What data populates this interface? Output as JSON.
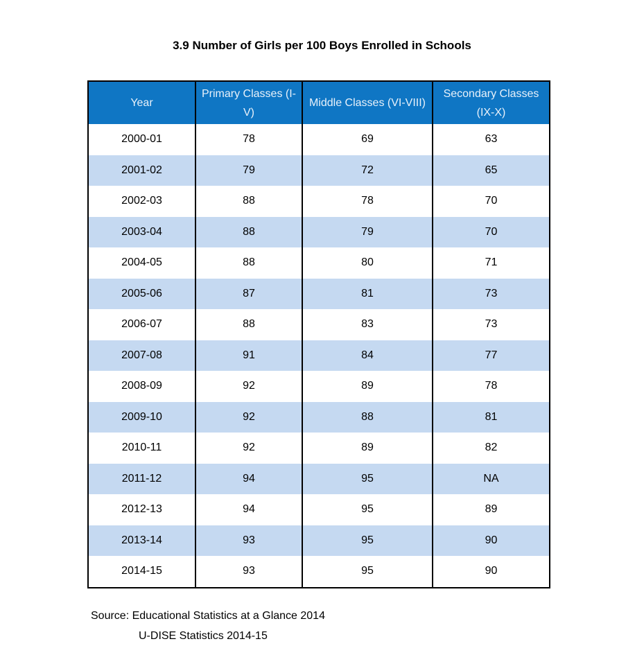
{
  "title": "3.9  Number of Girls per 100 Boys Enrolled in Schools",
  "table": {
    "headers": {
      "year": "Year",
      "primary": "Primary Classes (I-V)",
      "middle": "Middle Classes (VI-VIII)",
      "secondary": "Secondary Classes (IX-X)"
    },
    "rows": [
      {
        "year": "2000-01",
        "primary": "78",
        "middle": "69",
        "secondary": "63"
      },
      {
        "year": "2001-02",
        "primary": "79",
        "middle": "72",
        "secondary": "65"
      },
      {
        "year": "2002-03",
        "primary": "88",
        "middle": "78",
        "secondary": "70"
      },
      {
        "year": "2003-04",
        "primary": "88",
        "middle": "79",
        "secondary": "70"
      },
      {
        "year": "2004-05",
        "primary": "88",
        "middle": "80",
        "secondary": "71"
      },
      {
        "year": "2005-06",
        "primary": "87",
        "middle": "81",
        "secondary": "73"
      },
      {
        "year": "2006-07",
        "primary": "88",
        "middle": "83",
        "secondary": "73"
      },
      {
        "year": "2007-08",
        "primary": "91",
        "middle": "84",
        "secondary": "77"
      },
      {
        "year": "2008-09",
        "primary": "92",
        "middle": "89",
        "secondary": "78"
      },
      {
        "year": "2009-10",
        "primary": "92",
        "middle": "88",
        "secondary": "81"
      },
      {
        "year": "2010-11",
        "primary": "92",
        "middle": "89",
        "secondary": "82"
      },
      {
        "year": "2011-12",
        "primary": "94",
        "middle": "95",
        "secondary": "NA"
      },
      {
        "year": "2012-13",
        "primary": "94",
        "middle": "95",
        "secondary": "89"
      },
      {
        "year": "2013-14",
        "primary": "93",
        "middle": "95",
        "secondary": "90"
      },
      {
        "year": "2014-15",
        "primary": "93",
        "middle": "95",
        "secondary": "90"
      }
    ]
  },
  "source": {
    "line1": "Source: Educational Statistics at a Glance 2014",
    "line2": "U-DISE Statistics 2014-15"
  },
  "colors": {
    "header_bg": "#0f76c4",
    "header_text": "#e8f1fa",
    "stripe_bg": "#c5d9f1"
  }
}
